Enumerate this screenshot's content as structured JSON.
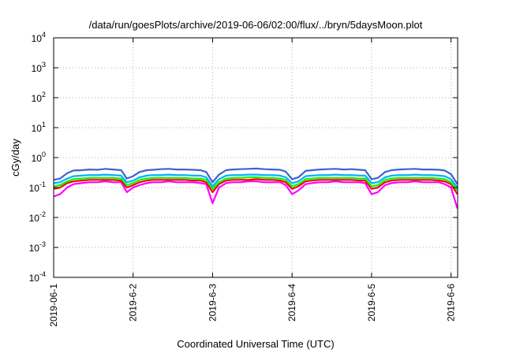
{
  "chart_data": {
    "type": "line",
    "title": "/data/run/goesPlots/archive/2019-06-06/02:00/flux/../bryn/5daysMoon.plot",
    "xlabel": "Coordinated Universal Time (UTC)",
    "ylabel": "cGy/day",
    "yscale": "log",
    "ylim": [
      0.0001,
      10000
    ],
    "xlim": [
      "2019-06-01",
      "2019-06-06 02:00"
    ],
    "x_ticks": [
      "2019-06-1",
      "2019-6-2",
      "2019-6-3",
      "2019-6-4",
      "2019-6-5",
      "2019-6-6"
    ],
    "y_ticks": [
      {
        "value": 0.0001,
        "base": "10",
        "exp": "-4"
      },
      {
        "value": 0.001,
        "base": "10",
        "exp": "-3"
      },
      {
        "value": 0.01,
        "base": "10",
        "exp": "-2"
      },
      {
        "value": 0.1,
        "base": "10",
        "exp": "-1"
      },
      {
        "value": 1,
        "base": "10",
        "exp": "0"
      },
      {
        "value": 10,
        "base": "10",
        "exp": "1"
      },
      {
        "value": 100,
        "base": "10",
        "exp": "2"
      },
      {
        "value": 1000,
        "base": "10",
        "exp": "3"
      },
      {
        "value": 10000,
        "base": "10",
        "exp": "4"
      }
    ],
    "grid": true,
    "legend": "none",
    "series": [
      {
        "color": "#ff00ff",
        "x_days": [
          0.0,
          0.08,
          0.17,
          0.25,
          0.35,
          0.45,
          0.55,
          0.65,
          0.75,
          0.85,
          0.92,
          1.0,
          1.08,
          1.17,
          1.25,
          1.35,
          1.45,
          1.55,
          1.65,
          1.75,
          1.85,
          1.92,
          2.0,
          2.08,
          2.17,
          2.25,
          2.35,
          2.45,
          2.55,
          2.65,
          2.75,
          2.85,
          2.92,
          3.0,
          3.08,
          3.17,
          3.25,
          3.35,
          3.45,
          3.55,
          3.65,
          3.75,
          3.85,
          3.92,
          4.0,
          4.08,
          4.17,
          4.25,
          4.35,
          4.45,
          4.55,
          4.65,
          4.75,
          4.85,
          4.92,
          5.0,
          5.08
        ],
        "y": [
          0.05,
          0.06,
          0.1,
          0.13,
          0.14,
          0.15,
          0.15,
          0.16,
          0.15,
          0.15,
          0.07,
          0.1,
          0.12,
          0.14,
          0.15,
          0.15,
          0.16,
          0.15,
          0.15,
          0.15,
          0.14,
          0.13,
          0.03,
          0.1,
          0.14,
          0.15,
          0.15,
          0.16,
          0.16,
          0.15,
          0.15,
          0.15,
          0.12,
          0.06,
          0.08,
          0.13,
          0.14,
          0.15,
          0.15,
          0.16,
          0.15,
          0.15,
          0.15,
          0.14,
          0.06,
          0.07,
          0.12,
          0.14,
          0.15,
          0.15,
          0.16,
          0.15,
          0.15,
          0.15,
          0.13,
          0.1,
          0.02
        ]
      },
      {
        "color": "#ff0000",
        "x_days": [
          0.0,
          0.08,
          0.17,
          0.25,
          0.35,
          0.45,
          0.55,
          0.65,
          0.75,
          0.85,
          0.92,
          1.0,
          1.08,
          1.17,
          1.25,
          1.35,
          1.45,
          1.55,
          1.65,
          1.75,
          1.85,
          1.92,
          2.0,
          2.08,
          2.17,
          2.25,
          2.35,
          2.45,
          2.55,
          2.65,
          2.75,
          2.85,
          2.92,
          3.0,
          3.08,
          3.17,
          3.25,
          3.35,
          3.45,
          3.55,
          3.65,
          3.75,
          3.85,
          3.92,
          4.0,
          4.08,
          4.17,
          4.25,
          4.35,
          4.45,
          4.55,
          4.65,
          4.75,
          4.85,
          4.92,
          5.0,
          5.08
        ],
        "y": [
          0.09,
          0.1,
          0.14,
          0.16,
          0.17,
          0.18,
          0.18,
          0.18,
          0.18,
          0.17,
          0.1,
          0.12,
          0.15,
          0.17,
          0.18,
          0.18,
          0.18,
          0.18,
          0.18,
          0.17,
          0.17,
          0.15,
          0.07,
          0.13,
          0.17,
          0.18,
          0.18,
          0.18,
          0.19,
          0.18,
          0.18,
          0.17,
          0.15,
          0.09,
          0.11,
          0.16,
          0.17,
          0.18,
          0.18,
          0.18,
          0.18,
          0.18,
          0.17,
          0.17,
          0.09,
          0.1,
          0.15,
          0.17,
          0.18,
          0.18,
          0.18,
          0.18,
          0.18,
          0.17,
          0.16,
          0.13,
          0.06
        ]
      },
      {
        "color": "#00ff00",
        "x_days": [
          0.0,
          0.08,
          0.17,
          0.25,
          0.35,
          0.45,
          0.55,
          0.65,
          0.75,
          0.85,
          0.92,
          1.0,
          1.08,
          1.17,
          1.25,
          1.35,
          1.45,
          1.55,
          1.65,
          1.75,
          1.85,
          1.92,
          2.0,
          2.08,
          2.17,
          2.25,
          2.35,
          2.45,
          2.55,
          2.65,
          2.75,
          2.85,
          2.92,
          3.0,
          3.08,
          3.17,
          3.25,
          3.35,
          3.45,
          3.55,
          3.65,
          3.75,
          3.85,
          3.92,
          4.0,
          4.08,
          4.17,
          4.25,
          4.35,
          4.45,
          4.55,
          4.65,
          4.75,
          4.85,
          4.92,
          5.0,
          5.08
        ],
        "y": [
          0.11,
          0.12,
          0.16,
          0.19,
          0.2,
          0.21,
          0.21,
          0.21,
          0.21,
          0.2,
          0.12,
          0.14,
          0.18,
          0.2,
          0.21,
          0.21,
          0.21,
          0.21,
          0.21,
          0.2,
          0.2,
          0.18,
          0.09,
          0.15,
          0.2,
          0.21,
          0.21,
          0.22,
          0.22,
          0.21,
          0.21,
          0.2,
          0.18,
          0.11,
          0.13,
          0.19,
          0.2,
          0.21,
          0.21,
          0.21,
          0.21,
          0.21,
          0.2,
          0.2,
          0.11,
          0.12,
          0.18,
          0.2,
          0.21,
          0.21,
          0.21,
          0.21,
          0.21,
          0.2,
          0.19,
          0.15,
          0.08
        ]
      },
      {
        "color": "#00b0ff",
        "x_days": [
          0.0,
          0.08,
          0.17,
          0.25,
          0.35,
          0.45,
          0.55,
          0.65,
          0.75,
          0.85,
          0.92,
          1.0,
          1.08,
          1.17,
          1.25,
          1.35,
          1.45,
          1.55,
          1.65,
          1.75,
          1.85,
          1.92,
          2.0,
          2.08,
          2.17,
          2.25,
          2.35,
          2.45,
          2.55,
          2.65,
          2.75,
          2.85,
          2.92,
          3.0,
          3.08,
          3.17,
          3.25,
          3.35,
          3.45,
          3.55,
          3.65,
          3.75,
          3.85,
          3.92,
          4.0,
          4.08,
          4.17,
          4.25,
          4.35,
          4.45,
          4.55,
          4.65,
          4.75,
          4.85,
          4.92,
          5.0,
          5.08
        ],
        "y": [
          0.14,
          0.15,
          0.2,
          0.24,
          0.25,
          0.26,
          0.26,
          0.27,
          0.26,
          0.25,
          0.15,
          0.17,
          0.22,
          0.25,
          0.26,
          0.26,
          0.27,
          0.26,
          0.26,
          0.25,
          0.25,
          0.22,
          0.11,
          0.19,
          0.25,
          0.26,
          0.26,
          0.27,
          0.27,
          0.26,
          0.26,
          0.25,
          0.22,
          0.14,
          0.16,
          0.24,
          0.25,
          0.26,
          0.26,
          0.27,
          0.26,
          0.26,
          0.25,
          0.25,
          0.14,
          0.15,
          0.22,
          0.25,
          0.26,
          0.26,
          0.27,
          0.26,
          0.26,
          0.25,
          0.24,
          0.19,
          0.1
        ]
      },
      {
        "color": "#4060d0",
        "x_days": [
          0.0,
          0.08,
          0.17,
          0.25,
          0.35,
          0.45,
          0.55,
          0.65,
          0.75,
          0.85,
          0.92,
          1.0,
          1.08,
          1.17,
          1.25,
          1.35,
          1.45,
          1.55,
          1.65,
          1.75,
          1.85,
          1.92,
          2.0,
          2.08,
          2.17,
          2.25,
          2.35,
          2.45,
          2.55,
          2.65,
          2.75,
          2.85,
          2.92,
          3.0,
          3.08,
          3.17,
          3.25,
          3.35,
          3.45,
          3.55,
          3.65,
          3.75,
          3.85,
          3.92,
          4.0,
          4.08,
          4.17,
          4.25,
          4.35,
          4.45,
          4.55,
          4.65,
          4.75,
          4.85,
          4.92,
          5.0,
          5.08
        ],
        "y": [
          0.18,
          0.2,
          0.3,
          0.37,
          0.38,
          0.4,
          0.39,
          0.42,
          0.4,
          0.38,
          0.2,
          0.24,
          0.33,
          0.38,
          0.39,
          0.41,
          0.42,
          0.4,
          0.4,
          0.39,
          0.38,
          0.33,
          0.15,
          0.27,
          0.38,
          0.4,
          0.41,
          0.42,
          0.43,
          0.41,
          0.4,
          0.39,
          0.34,
          0.19,
          0.22,
          0.36,
          0.38,
          0.4,
          0.41,
          0.42,
          0.4,
          0.41,
          0.39,
          0.38,
          0.19,
          0.21,
          0.33,
          0.38,
          0.4,
          0.41,
          0.42,
          0.4,
          0.4,
          0.39,
          0.37,
          0.28,
          0.13
        ]
      }
    ]
  }
}
